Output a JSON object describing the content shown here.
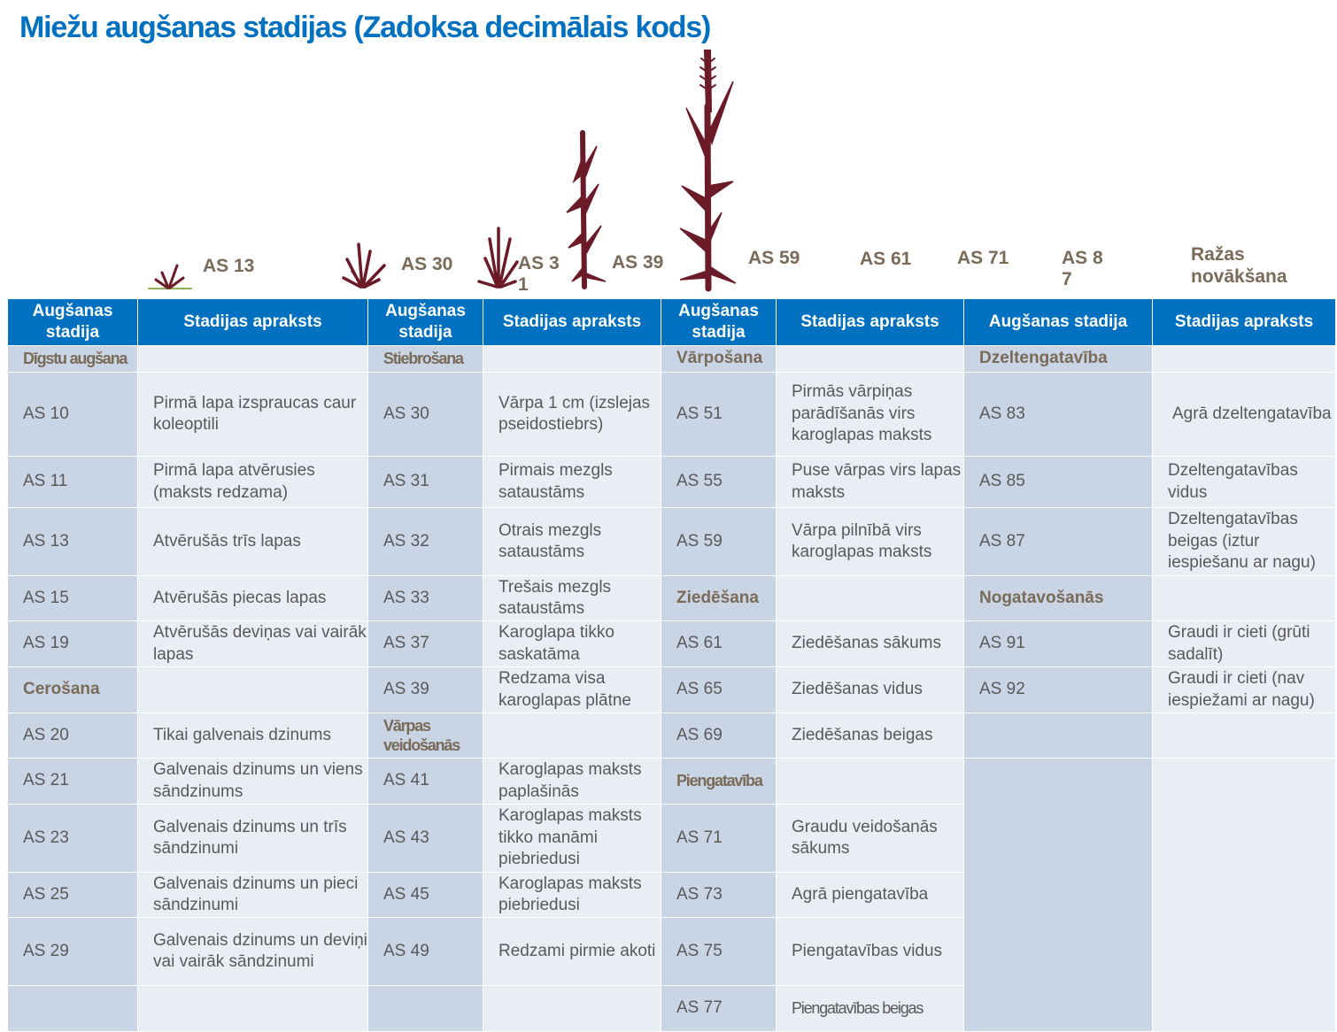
{
  "title": "Miežu augšanas stadijas (Zadoksa decimālais kods)",
  "colors": {
    "title": "#0070c0",
    "header": "#0070c0",
    "plant": "#6b1b28",
    "label": "#7a6a58"
  },
  "stage_labels": [
    "AS 13",
    "AS 30",
    "AS 3\n1",
    "AS 39",
    "AS 59",
    "AS 61",
    "AS 71",
    "AS 8\n7",
    "Ražas\nnovākšana"
  ],
  "headers": [
    "Augšanas stadija",
    "Stadijas apraksts",
    "Augšanas stadija",
    "Stadijas apraksts",
    "Augšanas stadija",
    "Stadijas apraksts",
    "Augšanas stadija",
    "Stadijas apraksts"
  ],
  "rows": [
    [
      "Dīgstu augšana",
      "",
      "Stiebrošana",
      "",
      "Vārpošana",
      "",
      "Dzeltengatavība",
      ""
    ],
    [
      "AS 10",
      "Pirmā lapa izspraucas caur koleoptili",
      "AS 30",
      "Vārpa 1 cm (izslejas pseidostiebrs)",
      "AS 51",
      "Pirmās vārpiņas parādīšanās virs karoglapas maksts",
      "AS 83",
      "Agrā dzeltengatavība"
    ],
    [
      "AS 11",
      "Pirmā lapa atvērusies (maksts redzama)",
      "AS 31",
      "Pirmais mezgls sataustāms",
      "AS 55",
      "Puse vārpas virs lapas maksts",
      "AS 85",
      "Dzeltengatavības vidus"
    ],
    [
      "AS 13",
      "Atvērušās trīs lapas",
      "AS 32",
      "Otrais mezgls sataustāms",
      "AS 59",
      "Vārpa pilnībā virs karoglapas maksts",
      "AS 87",
      "Dzeltengatavības beigas (iztur iespiešanu ar nagu)"
    ],
    [
      "AS 15",
      "Atvērušās piecas lapas",
      "AS 33",
      "Trešais mezgls sataustāms",
      "Ziedēšana",
      "",
      "Nogatavošanās",
      ""
    ],
    [
      "AS 19",
      "Atvērušās deviņas vai vairāk lapas",
      "AS 37",
      "Karoglapa tikko saskatāma",
      "AS 61",
      "Ziedēšanas sākums",
      "AS 91",
      "Graudi ir cieti (grūti sadalīt)"
    ],
    [
      "Cerošana",
      "",
      "AS 39",
      "Redzama visa karoglapas plātne",
      "AS 65",
      "Ziedēšanas vidus",
      "AS 92",
      "Graudi ir cieti (nav iespiežami ar nagu)"
    ],
    [
      "AS 20",
      "Tikai galvenais dzinums",
      "Vārpas veidošanās",
      "",
      "AS 69",
      "Ziedēšanas beigas",
      "",
      ""
    ],
    [
      "AS 21",
      "Galvenais dzinums un viens sāndzinums",
      "AS 41",
      "Karoglapas maksts paplašinās",
      "Piengatavība",
      ""
    ],
    [
      "AS 23",
      "Galvenais dzinums un trīs sāndzinumi",
      "AS 43",
      "Karoglapas maksts tikko manāmi piebriedusi",
      "AS 71",
      "Graudu veidošanās sākums"
    ],
    [
      "AS 25",
      "Galvenais dzinums un pieci sāndzinumi",
      "AS 45",
      "Karoglapas maksts piebriedusi",
      "AS 73",
      "Agrā piengatavība"
    ],
    [
      "AS 29",
      "Galvenais dzinums un deviņi vai vairāk sāndzinumi",
      "AS 49",
      "Redzami pirmie akoti",
      "AS 75",
      "Piengatavības vidus"
    ],
    [
      "",
      "",
      "",
      "",
      "AS 77",
      "Piengatavības beigas"
    ]
  ]
}
